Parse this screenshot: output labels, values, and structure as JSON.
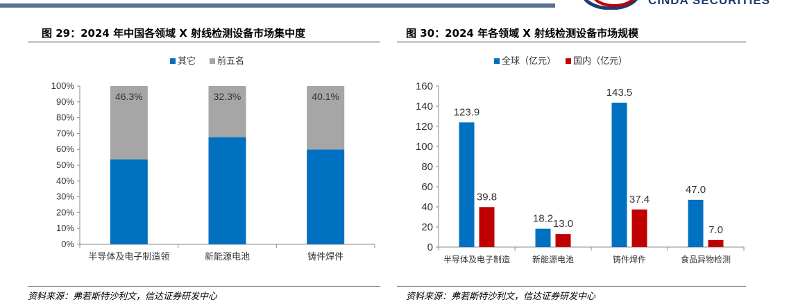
{
  "brand": {
    "logo_text": "CINDA SECURITIES"
  },
  "left": {
    "title": "图 29：2024 年中国各领域 X 射线检测设备市场集中度",
    "source": "资料来源：弗若斯特沙利文，信达证券研发中心",
    "chart_data": {
      "type": "bar",
      "stacked": true,
      "title": "",
      "categories": [
        "半导体及电子制造领",
        "新能源电池",
        "铸件焊件"
      ],
      "series": [
        {
          "name": "其它",
          "values": [
            53.7,
            67.7,
            59.9
          ],
          "color": "#0070C0",
          "labels": [
            "",
            "",
            ""
          ]
        },
        {
          "name": "前五名",
          "values": [
            46.3,
            32.3,
            40.1
          ],
          "color": "#A6A6A6",
          "labels": [
            "46.3%",
            "32.3%",
            "40.1%"
          ]
        }
      ],
      "ylim": [
        0,
        100
      ],
      "yticks": [
        "0%",
        "10%",
        "20%",
        "30%",
        "40%",
        "50%",
        "60%",
        "70%",
        "80%",
        "90%",
        "100%"
      ],
      "legend_position": "top",
      "grid": false
    }
  },
  "right": {
    "title": "图 30：2024 年各领域 X 射线检测设备市场规模",
    "source": "资料来源：弗若斯特沙利文，信达证券研发中心",
    "chart_data": {
      "type": "bar",
      "title": "",
      "categories": [
        "半导体及电子制造",
        "新能源电池",
        "铸件焊件",
        "食品异物检测"
      ],
      "series": [
        {
          "name": "全球（亿元）",
          "values": [
            123.9,
            18.2,
            143.5,
            47.0
          ],
          "color": "#0070C0",
          "labels": [
            "123.9",
            "18.2",
            "143.5",
            "47.0"
          ]
        },
        {
          "name": "国内（亿元）",
          "values": [
            39.8,
            13.0,
            37.4,
            7.0
          ],
          "color": "#C00000",
          "labels": [
            "39.8",
            "13.0",
            "37.4",
            "7.0"
          ]
        }
      ],
      "ylim": [
        0,
        160
      ],
      "yticks": [
        "0",
        "20",
        "40",
        "60",
        "80",
        "100",
        "120",
        "140",
        "160"
      ],
      "legend_position": "top",
      "grid": false
    }
  }
}
